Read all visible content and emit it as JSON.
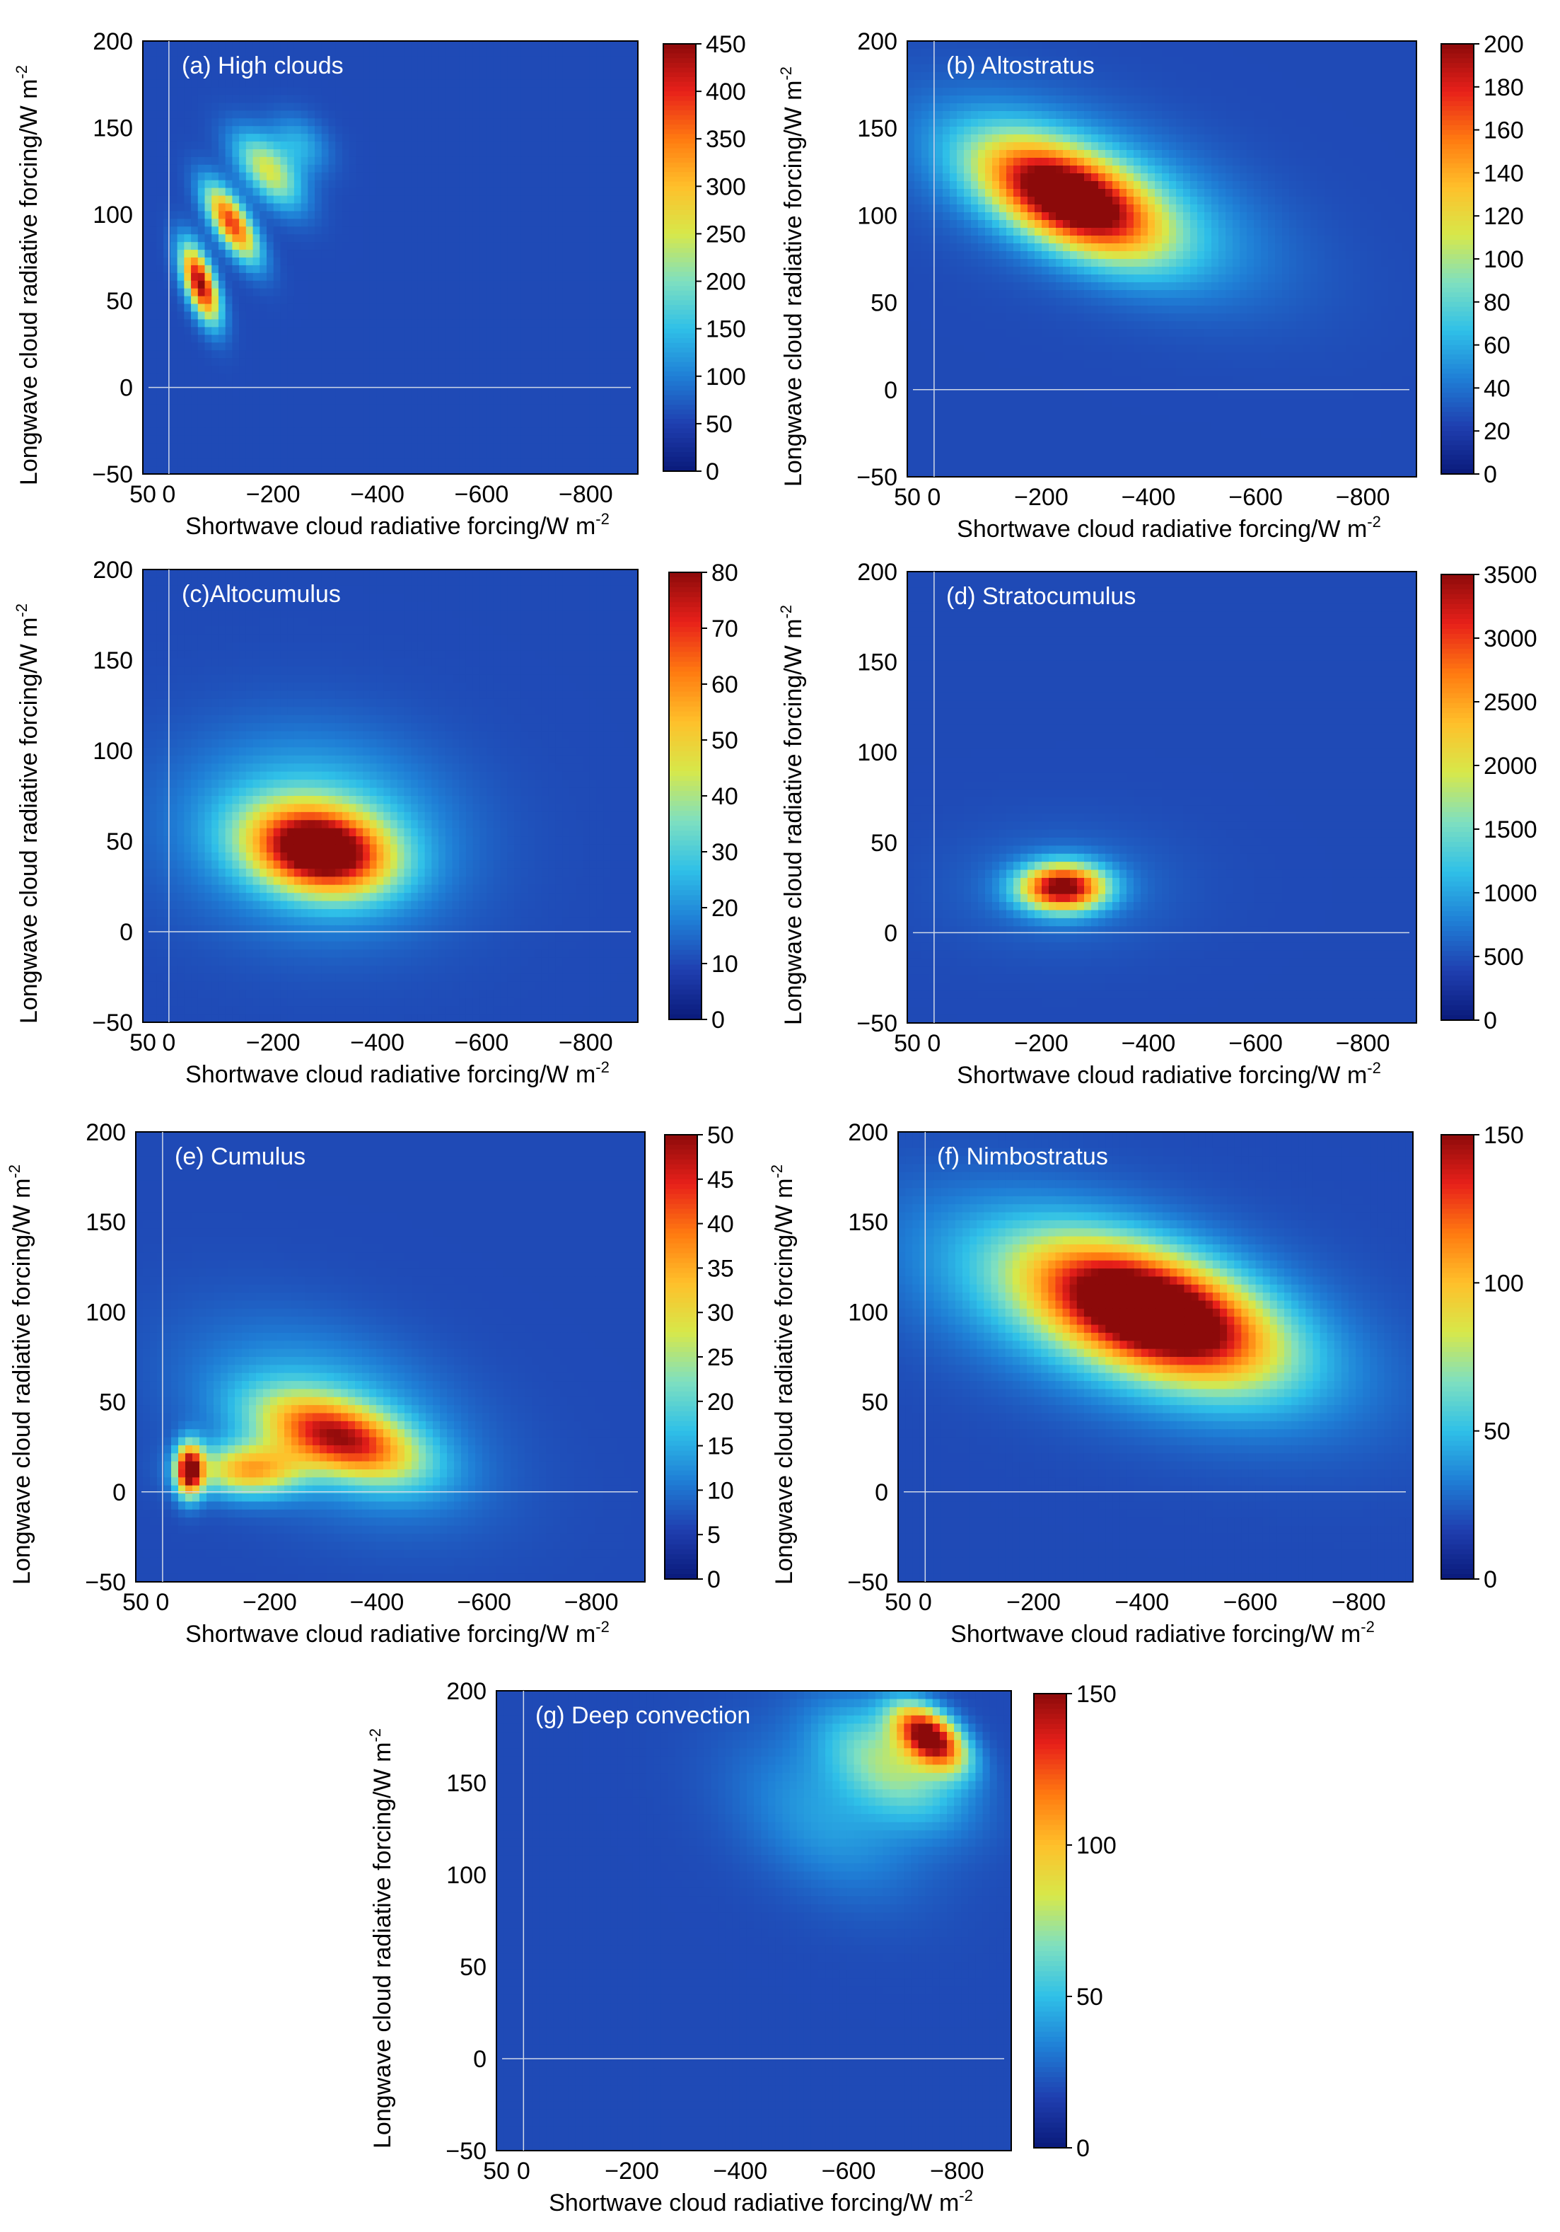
{
  "figure": {
    "colormap": [
      "#0a1a7a",
      "#1f3fb0",
      "#1f7fd6",
      "#2fc0e8",
      "#7fe0c0",
      "#d7e84a",
      "#ffc02a",
      "#ff7a10",
      "#e8201a",
      "#8c0a0a"
    ],
    "background_color": "#1f3a7a"
  },
  "chart_data": [
    {
      "type": "heatmap",
      "title": "(a) High clouds",
      "xlabel": "Shortwave cloud radiative forcing/W m",
      "xlabel_sup": "-2",
      "ylabel": "Longwave cloud radiative forcing/W m",
      "ylabel_sup": "-2",
      "xlim": [
        50,
        -900
      ],
      "ylim": [
        -50,
        200
      ],
      "xticks": [
        "50",
        "0",
        "−200",
        "−400",
        "−600",
        "−800"
      ],
      "yticks": [
        "200",
        "150",
        "100",
        "50",
        "0",
        "−50"
      ],
      "colorbar": {
        "min": 0,
        "max": 450,
        "ticks": [
          "450",
          "400",
          "350",
          "300",
          "250",
          "200",
          "150",
          "100",
          "50",
          "0"
        ]
      },
      "blobs": [
        {
          "x": -60,
          "y": 60,
          "sx": 25,
          "sy": 15,
          "rho": 0.6,
          "peak": 450
        },
        {
          "x": -120,
          "y": 95,
          "sx": 35,
          "sy": 15,
          "rho": 0.7,
          "peak": 380
        },
        {
          "x": -190,
          "y": 125,
          "sx": 45,
          "sy": 15,
          "rho": 0.6,
          "peak": 220
        },
        {
          "x": -250,
          "y": 140,
          "sx": 40,
          "sy": 12,
          "rho": 0.3,
          "peak": 90
        }
      ]
    },
    {
      "type": "heatmap",
      "title": "(b) Altostratus",
      "xlabel": "Shortwave cloud radiative forcing/W m",
      "xlabel_sup": "-2",
      "ylabel": "Longwave cloud radiative forcing/W m",
      "ylabel_sup": "-2",
      "xlim": [
        50,
        -900
      ],
      "ylim": [
        -50,
        200
      ],
      "xticks": [
        "50",
        "0",
        "−200",
        "−400",
        "−600",
        "−800"
      ],
      "yticks": [
        "200",
        "150",
        "100",
        "50",
        "0",
        "−50"
      ],
      "colorbar": {
        "min": 0,
        "max": 200,
        "ticks": [
          "200",
          "180",
          "160",
          "140",
          "120",
          "100",
          "80",
          "60",
          "40",
          "20",
          "0"
        ]
      },
      "blobs": [
        {
          "x": -250,
          "y": 110,
          "sx": 110,
          "sy": 22,
          "rho": 0.55,
          "peak": 200
        },
        {
          "x": -300,
          "y": 110,
          "sx": 200,
          "sy": 35,
          "rho": 0.55,
          "peak": 60
        }
      ]
    },
    {
      "type": "heatmap",
      "title": "(c)Altocumulus",
      "xlabel": "Shortwave cloud radiative forcing/W m",
      "xlabel_sup": "-2",
      "ylabel": "Longwave cloud radiative forcing/W m",
      "ylabel_sup": "-2",
      "xlim": [
        50,
        -900
      ],
      "ylim": [
        -50,
        200
      ],
      "xticks": [
        "50",
        "0",
        "−200",
        "−400",
        "−600",
        "−800"
      ],
      "yticks": [
        "200",
        "150",
        "100",
        "50",
        "0",
        "−50"
      ],
      "colorbar": {
        "min": 0,
        "max": 80,
        "ticks": [
          "80",
          "70",
          "60",
          "50",
          "40",
          "30",
          "20",
          "10",
          "0"
        ]
      },
      "blobs": [
        {
          "x": -290,
          "y": 45,
          "sx": 90,
          "sy": 16,
          "rho": 0.2,
          "peak": 80
        },
        {
          "x": -280,
          "y": 55,
          "sx": 170,
          "sy": 35,
          "rho": 0.1,
          "peak": 25
        }
      ]
    },
    {
      "type": "heatmap",
      "title": "(d) Stratocumulus",
      "xlabel": "Shortwave cloud radiative forcing/W m",
      "xlabel_sup": "-2",
      "ylabel": "Longwave cloud radiative forcing/W m",
      "ylabel_sup": "-2",
      "xlim": [
        50,
        -900
      ],
      "ylim": [
        -50,
        200
      ],
      "xticks": [
        "50",
        "0",
        "−200",
        "−400",
        "−600",
        "−800"
      ],
      "yticks": [
        "200",
        "150",
        "100",
        "50",
        "0",
        "−50"
      ],
      "colorbar": {
        "min": 0,
        "max": 3500,
        "ticks": [
          "3500",
          "3000",
          "2500",
          "2000",
          "1500",
          "1000",
          "500",
          "0"
        ]
      },
      "blobs": [
        {
          "x": -240,
          "y": 25,
          "sx": 55,
          "sy": 9,
          "rho": 0,
          "peak": 3500
        },
        {
          "x": -240,
          "y": 25,
          "sx": 140,
          "sy": 22,
          "rho": 0,
          "peak": 300
        }
      ]
    },
    {
      "type": "heatmap",
      "title": "(e) Cumulus",
      "xlabel": "Shortwave cloud radiative forcing/W m",
      "xlabel_sup": "-2",
      "ylabel": "Longwave cloud radiative forcing/W m",
      "ylabel_sup": "-2",
      "xlim": [
        50,
        -900
      ],
      "ylim": [
        -50,
        200
      ],
      "xticks": [
        "50",
        "0",
        "−200",
        "−400",
        "−600",
        "−800"
      ],
      "yticks": [
        "200",
        "150",
        "100",
        "50",
        "0",
        "−50"
      ],
      "colorbar": {
        "min": 0,
        "max": 50,
        "ticks": [
          "50",
          "45",
          "40",
          "35",
          "30",
          "25",
          "20",
          "15",
          "10",
          "5",
          "0"
        ]
      },
      "blobs": [
        {
          "x": -50,
          "y": 12,
          "sx": 18,
          "sy": 10,
          "rho": 0,
          "peak": 50
        },
        {
          "x": -330,
          "y": 30,
          "sx": 100,
          "sy": 16,
          "rho": 0.5,
          "peak": 38
        },
        {
          "x": -160,
          "y": 12,
          "sx": 70,
          "sy": 10,
          "rho": 0,
          "peak": 30
        },
        {
          "x": -320,
          "y": 40,
          "sx": 170,
          "sy": 35,
          "rho": 0.4,
          "peak": 12
        }
      ]
    },
    {
      "type": "heatmap",
      "title": "(f) Nimbostratus",
      "xlabel": "Shortwave cloud radiative forcing/W m",
      "xlabel_sup": "-2",
      "ylabel": "Longwave cloud radiative forcing/W m",
      "ylabel_sup": "-2",
      "xlim": [
        50,
        -900
      ],
      "ylim": [
        -50,
        200
      ],
      "xticks": [
        "50",
        "0",
        "−200",
        "−400",
        "−600",
        "−800"
      ],
      "yticks": [
        "200",
        "150",
        "100",
        "50",
        "0",
        "−50"
      ],
      "colorbar": {
        "min": 0,
        "max": 150,
        "ticks": [
          "150",
          "100",
          "50",
          "0"
        ]
      },
      "blobs": [
        {
          "x": -420,
          "y": 100,
          "sx": 140,
          "sy": 24,
          "rho": 0.5,
          "peak": 150
        },
        {
          "x": -380,
          "y": 100,
          "sx": 240,
          "sy": 38,
          "rho": 0.5,
          "peak": 65
        }
      ]
    },
    {
      "type": "heatmap",
      "title": "(g) Deep convection",
      "xlabel": "Shortwave cloud radiative forcing/W m",
      "xlabel_sup": "-2",
      "ylabel": "Longwave cloud radiative forcing/W m",
      "ylabel_sup": "-2",
      "xlim": [
        50,
        -900
      ],
      "ylim": [
        -50,
        200
      ],
      "xticks": [
        "50",
        "0",
        "−200",
        "−400",
        "−600",
        "−800"
      ],
      "yticks": [
        "200",
        "150",
        "100",
        "50",
        "0",
        "−50"
      ],
      "colorbar": {
        "min": 0,
        "max": 150,
        "ticks": [
          "150",
          "100",
          "50",
          "0"
        ]
      },
      "blobs": [
        {
          "x": -750,
          "y": 175,
          "sx": 45,
          "sy": 12,
          "rho": 0.5,
          "peak": 150
        },
        {
          "x": -680,
          "y": 160,
          "sx": 90,
          "sy": 22,
          "rho": 0.5,
          "peak": 60
        },
        {
          "x": -560,
          "y": 130,
          "sx": 120,
          "sy": 30,
          "rho": 0.4,
          "peak": 25
        }
      ]
    }
  ]
}
